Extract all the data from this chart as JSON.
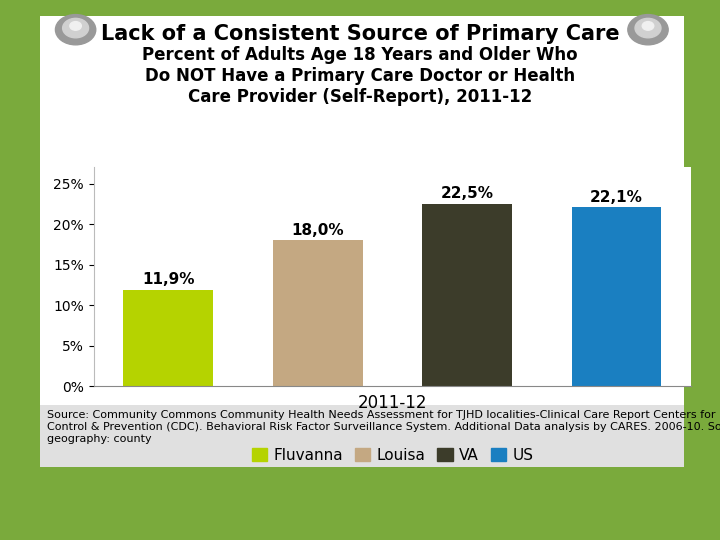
{
  "title": "Lack of a Consistent Source of Primary Care",
  "subtitle": "Percent of Adults Age 18 Years and Older Who\nDo NOT Have a Primary Care Doctor or Health\nCare Provider (Self-Report), 2011-12",
  "categories": [
    "Fluvanna",
    "Louisa",
    "VA",
    "US"
  ],
  "values": [
    11.9,
    18.0,
    22.5,
    22.1
  ],
  "bar_colors": [
    "#b5d300",
    "#c4a882",
    "#3c3c2a",
    "#1a7fc1"
  ],
  "xlabel": "2011-12",
  "ylim": [
    0,
    27
  ],
  "yticks": [
    0,
    5,
    10,
    15,
    20,
    25
  ],
  "ytick_labels": [
    "0%",
    "5%",
    "10%",
    "15%",
    "20%",
    "25%"
  ],
  "data_labels": [
    "11,9%",
    "18,0%",
    "22,5%",
    "22,1%"
  ],
  "source_text": "Source: Community Commons Community Health Needs Assessment for TJHD localities-Clinical Care Report Centers for Disease\nControl & Prevention (CDC). Behavioral Risk Factor Surveillance System. Additional Data analysis by CARES. 2006-10. Source\ngeography: county",
  "background_color": "#7aaa3c",
  "panel_color": "#ffffff",
  "source_bg_color": "#e8e8e8",
  "title_fontsize": 15,
  "subtitle_fontsize": 12,
  "label_fontsize": 11,
  "tick_fontsize": 10,
  "legend_fontsize": 11,
  "source_fontsize": 8
}
